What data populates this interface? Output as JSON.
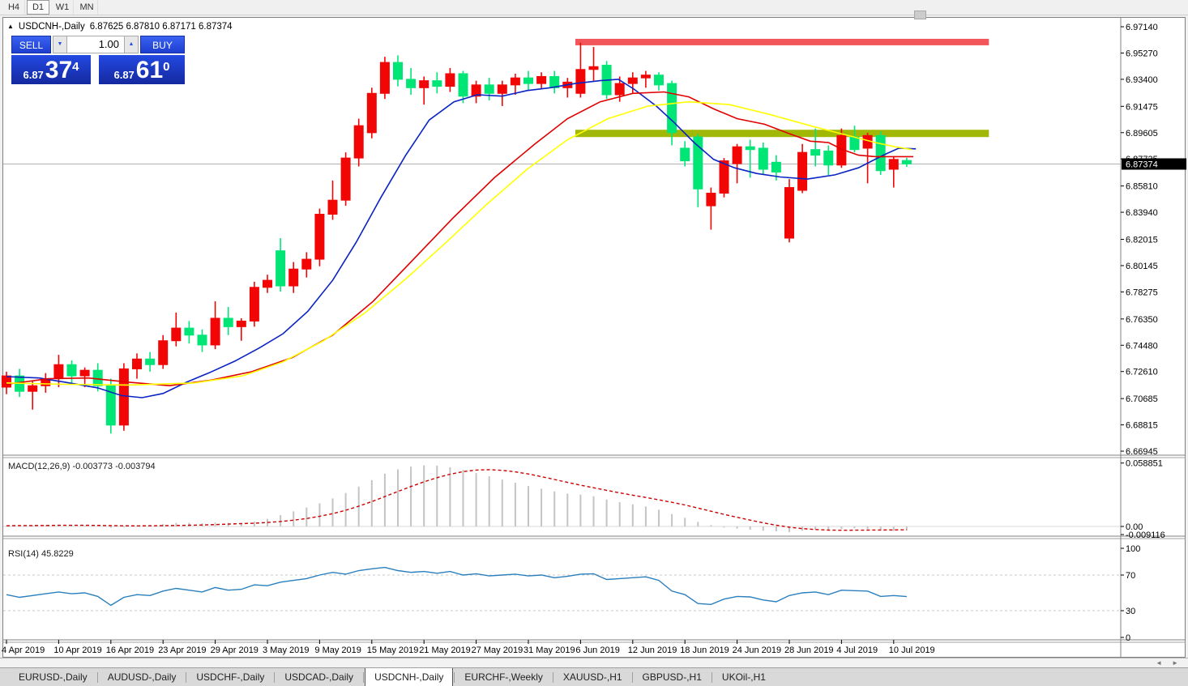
{
  "toolbar": {
    "timeframes": [
      "H4",
      "D1",
      "W1",
      "MN"
    ],
    "active_timeframe": "D1"
  },
  "window": {
    "collapse_icon": "▲",
    "symbol": "USDCNH-,Daily",
    "ohlc_text": "6.87625 6.87810 6.87171 6.87374"
  },
  "trade_panel": {
    "sell_label": "SELL",
    "buy_label": "BUY",
    "volume": "1.00",
    "spin_down_icon": "▼",
    "spin_up_icon": "▲",
    "sell_price": {
      "small": "6.87",
      "big": "37",
      "sup": "4"
    },
    "buy_price": {
      "small": "6.87",
      "big": "61",
      "sup": "0"
    }
  },
  "indicators": {
    "macd_label": "MACD(12,26,9) -0.003773 -0.003794",
    "rsi_label": "RSI(14) 45.8229"
  },
  "price_axis": {
    "labels": [
      "6.97140",
      "6.95270",
      "6.93400",
      "6.91475",
      "6.89605",
      "6.87735",
      "6.85810",
      "6.83940",
      "6.82015",
      "6.80145",
      "6.78275",
      "6.76350",
      "6.74480",
      "6.72610",
      "6.70685",
      "6.68815",
      "6.66945"
    ],
    "current_price": "6.87374"
  },
  "macd_axis": {
    "labels": [
      {
        "text": "0.058851",
        "value": 0.058851
      },
      {
        "text": "0.00",
        "value": 0.0
      },
      {
        "text": "-0.009116",
        "value": -0.009116
      }
    ]
  },
  "rsi_axis": {
    "labels": [
      {
        "text": "100",
        "value": 100
      },
      {
        "text": "70",
        "value": 70
      },
      {
        "text": "30",
        "value": 30
      },
      {
        "text": "0",
        "value": 0
      }
    ]
  },
  "tabs": {
    "items": [
      "EURUSD-,Daily",
      "AUDUSD-,Daily",
      "USDCHF-,Daily",
      "USDCAD-,Daily",
      "USDCNH-,Daily",
      "EURCHF-,Weekly",
      "XAUUSD-,H1",
      "GBPUSD-,H1",
      "UKOil-,H1"
    ],
    "active": "USDCNH-,Daily",
    "scroll_left_icon": "◄",
    "scroll_right_icon": "►"
  },
  "colors": {
    "bull": "#f20505",
    "bear": "#00e676",
    "ma_fast": "#0a23c4",
    "ma_mid": "#e00000",
    "ma_slow": "#ffff00",
    "macd_hist": "#c4c4c4",
    "macd_signal": "#cc0000",
    "rsi_line": "#2a7fbe",
    "rsi_guide": "#c8c8c8",
    "band_red": "#f2555a",
    "band_olive": "#a2b806",
    "bid_line": "#b3b3b3",
    "price_tag_bg": "#000000",
    "price_tag_fg": "#ffffff",
    "frame": "#808080",
    "axis_text": "#000000"
  },
  "chart_data": {
    "type": "candlestick",
    "symbol": "USDCNH",
    "timeframe": "Daily",
    "title": "USDCNH-,Daily",
    "y_axis_range": [
      6.66945,
      6.9714
    ],
    "color_convention": "red-up-green-down",
    "x_labels": [
      "4 Apr 2019",
      "10 Apr 2019",
      "16 Apr 2019",
      "23 Apr 2019",
      "29 Apr 2019",
      "3 May 2019",
      "9 May 2019",
      "15 May 2019",
      "21 May 2019",
      "27 May 2019",
      "31 May 2019",
      "6 Jun 2019",
      "12 Jun 2019",
      "18 Jun 2019",
      "24 Jun 2019",
      "28 Jun 2019",
      "4 Jul 2019",
      "10 Jul 2019"
    ],
    "x_label_every": 4,
    "candles": [
      [
        6.715,
        6.726,
        6.71,
        6.723
      ],
      [
        6.723,
        6.728,
        6.708,
        6.712
      ],
      [
        6.712,
        6.719,
        6.699,
        6.716
      ],
      [
        6.716,
        6.725,
        6.711,
        6.721
      ],
      [
        6.721,
        6.738,
        6.715,
        6.731
      ],
      [
        6.731,
        6.734,
        6.718,
        6.723
      ],
      [
        6.723,
        6.729,
        6.715,
        6.727
      ],
      [
        6.727,
        6.732,
        6.712,
        6.716
      ],
      [
        6.716,
        6.721,
        6.682,
        6.688
      ],
      [
        6.688,
        6.732,
        6.684,
        6.728
      ],
      [
        6.728,
        6.739,
        6.721,
        6.735
      ],
      [
        6.735,
        6.74,
        6.726,
        6.731
      ],
      [
        6.731,
        6.752,
        6.728,
        6.748
      ],
      [
        6.748,
        6.768,
        6.744,
        6.757
      ],
      [
        6.757,
        6.762,
        6.746,
        6.752
      ],
      [
        6.752,
        6.756,
        6.74,
        6.745
      ],
      [
        6.745,
        6.776,
        6.742,
        6.764
      ],
      [
        6.764,
        6.772,
        6.752,
        6.758
      ],
      [
        6.758,
        6.764,
        6.748,
        6.762
      ],
      [
        6.762,
        6.79,
        6.758,
        6.786
      ],
      [
        6.786,
        6.795,
        6.782,
        6.791
      ],
      [
        6.812,
        6.821,
        6.783,
        6.787
      ],
      [
        6.787,
        6.804,
        6.782,
        6.799
      ],
      [
        6.799,
        6.811,
        6.793,
        6.806
      ],
      [
        6.806,
        6.842,
        6.801,
        6.838
      ],
      [
        6.838,
        6.862,
        6.834,
        6.848
      ],
      [
        6.848,
        6.882,
        6.844,
        6.878
      ],
      [
        6.878,
        6.906,
        6.872,
        6.901
      ],
      [
        6.896,
        6.928,
        6.892,
        6.924
      ],
      [
        6.924,
        6.95,
        6.92,
        6.946
      ],
      [
        6.946,
        6.951,
        6.929,
        6.934
      ],
      [
        6.934,
        6.942,
        6.923,
        6.928
      ],
      [
        6.928,
        6.936,
        6.916,
        6.933
      ],
      [
        6.933,
        6.939,
        6.924,
        6.929
      ],
      [
        6.929,
        6.942,
        6.925,
        6.938
      ],
      [
        6.938,
        6.94,
        6.917,
        6.922
      ],
      [
        6.922,
        6.933,
        6.917,
        6.93
      ],
      [
        6.93,
        6.935,
        6.919,
        6.924
      ],
      [
        6.924,
        6.933,
        6.915,
        6.93
      ],
      [
        6.93,
        6.938,
        6.923,
        6.935
      ],
      [
        6.935,
        6.94,
        6.926,
        6.931
      ],
      [
        6.931,
        6.939,
        6.927,
        6.936
      ],
      [
        6.936,
        6.94,
        6.924,
        6.928
      ],
      [
        6.928,
        6.935,
        6.921,
        6.932
      ],
      [
        6.924,
        6.96,
        6.921,
        6.941
      ],
      [
        6.941,
        6.957,
        6.933,
        6.943
      ],
      [
        6.944,
        6.947,
        6.92,
        6.923
      ],
      [
        6.923,
        6.936,
        6.918,
        6.931
      ],
      [
        6.931,
        6.939,
        6.924,
        6.935
      ],
      [
        6.935,
        6.94,
        6.928,
        6.937
      ],
      [
        6.937,
        6.939,
        6.926,
        6.93
      ],
      [
        6.931,
        6.933,
        6.887,
        6.896
      ],
      [
        6.885,
        6.89,
        6.872,
        6.876
      ],
      [
        6.893,
        6.895,
        6.843,
        6.856
      ],
      [
        6.844,
        6.857,
        6.827,
        6.853
      ],
      [
        6.853,
        6.878,
        6.85,
        6.876
      ],
      [
        6.874,
        6.888,
        6.86,
        6.886
      ],
      [
        6.886,
        6.891,
        6.864,
        6.884
      ],
      [
        6.885,
        6.889,
        6.866,
        6.87
      ],
      [
        6.875,
        6.88,
        6.862,
        6.868
      ],
      [
        6.821,
        6.863,
        6.818,
        6.857
      ],
      [
        6.855,
        6.888,
        6.853,
        6.882
      ],
      [
        6.884,
        6.899,
        6.872,
        6.88
      ],
      [
        6.883,
        6.887,
        6.866,
        6.873
      ],
      [
        6.873,
        6.899,
        6.871,
        6.894
      ],
      [
        6.893,
        6.901,
        6.882,
        6.884
      ],
      [
        6.885,
        6.896,
        6.86,
        6.894
      ],
      [
        6.894,
        6.897,
        6.866,
        6.869
      ],
      [
        6.87,
        6.879,
        6.857,
        6.877
      ],
      [
        6.87625,
        6.8781,
        6.87171,
        6.87374
      ]
    ],
    "overlays": {
      "ma_fast": [
        [
          0,
          6.7225
        ],
        [
          2.5,
          6.7215
        ],
        [
          4.5,
          6.7185
        ],
        [
          7,
          6.7145
        ],
        [
          8.8,
          6.709
        ],
        [
          10.4,
          6.7075
        ],
        [
          12,
          6.7105
        ],
        [
          13.8,
          6.7185
        ],
        [
          15.6,
          6.7255
        ],
        [
          17.5,
          6.7335
        ],
        [
          19.4,
          6.743
        ],
        [
          21.2,
          6.753
        ],
        [
          23.1,
          6.769
        ],
        [
          25,
          6.791
        ],
        [
          26.8,
          6.818
        ],
        [
          28.7,
          6.85
        ],
        [
          30.6,
          6.88
        ],
        [
          32.4,
          6.905
        ],
        [
          34.3,
          6.918
        ],
        [
          36.1,
          6.923
        ],
        [
          38,
          6.922
        ],
        [
          39.9,
          6.926
        ],
        [
          41.7,
          6.928
        ],
        [
          43.6,
          6.931
        ],
        [
          45.5,
          6.933
        ],
        [
          46.9,
          6.934
        ],
        [
          48.1,
          6.927
        ],
        [
          49.8,
          6.915
        ],
        [
          51.2,
          6.903
        ],
        [
          52.7,
          6.889
        ],
        [
          54.2,
          6.877
        ],
        [
          55.8,
          6.871
        ],
        [
          57.5,
          6.867
        ],
        [
          59.3,
          6.8645
        ],
        [
          61.4,
          6.863
        ],
        [
          63.5,
          6.866
        ],
        [
          65.3,
          6.871
        ],
        [
          67.2,
          6.88
        ],
        [
          68.4,
          6.885
        ],
        [
          69.7,
          6.8845
        ]
      ],
      "ma_mid": [
        [
          0,
          6.717
        ],
        [
          3.2,
          6.721
        ],
        [
          6.3,
          6.7215
        ],
        [
          9.4,
          6.7185
        ],
        [
          12.5,
          6.716
        ],
        [
          15.7,
          6.72
        ],
        [
          18.8,
          6.726
        ],
        [
          21.9,
          6.736
        ],
        [
          25,
          6.752
        ],
        [
          28.1,
          6.776
        ],
        [
          31.2,
          6.806
        ],
        [
          34.3,
          6.836
        ],
        [
          37.4,
          6.864
        ],
        [
          40.5,
          6.888
        ],
        [
          43,
          6.906
        ],
        [
          45.5,
          6.918
        ],
        [
          48,
          6.924
        ],
        [
          50.4,
          6.925
        ],
        [
          52.3,
          6.9215
        ],
        [
          54.2,
          6.913
        ],
        [
          56,
          6.906
        ],
        [
          58.1,
          6.902
        ],
        [
          60.1,
          6.895
        ],
        [
          61.6,
          6.89
        ],
        [
          63,
          6.889
        ],
        [
          64.1,
          6.884
        ],
        [
          65.3,
          6.88
        ],
        [
          66.6,
          6.879
        ],
        [
          67.8,
          6.879
        ],
        [
          69.5,
          6.879
        ]
      ],
      "ma_slow": [
        [
          0,
          6.718
        ],
        [
          4.5,
          6.717
        ],
        [
          9.4,
          6.7165
        ],
        [
          14.4,
          6.718
        ],
        [
          18.1,
          6.723
        ],
        [
          21.2,
          6.733
        ],
        [
          24.3,
          6.748
        ],
        [
          27.5,
          6.768
        ],
        [
          30.6,
          6.792
        ],
        [
          33.7,
          6.818
        ],
        [
          36.8,
          6.845
        ],
        [
          39.9,
          6.87
        ],
        [
          43,
          6.891
        ],
        [
          46.1,
          6.906
        ],
        [
          49.2,
          6.915
        ],
        [
          52.3,
          6.918
        ],
        [
          55.4,
          6.916
        ],
        [
          58.5,
          6.909
        ],
        [
          61.6,
          6.901
        ],
        [
          64.1,
          6.895
        ],
        [
          66.6,
          6.889
        ],
        [
          68.1,
          6.886
        ],
        [
          69.4,
          6.884
        ]
      ],
      "resistance_band": {
        "price": 6.9605,
        "from": 43.6,
        "to": 75.3,
        "thickness_price": 0.0046
      },
      "support_band": {
        "price": 6.8955,
        "from": 43.6,
        "to": 75.3,
        "thickness_price": 0.0052
      },
      "bid_line": 6.87374
    },
    "macd": {
      "params": "12,26,9",
      "signal_period": 9,
      "current": -0.003773,
      "current_signal": -0.003794,
      "scale_max": 0.058851,
      "scale_min": -0.009116,
      "values": [
        0.0006,
        0.001,
        0.0008,
        0.0012,
        0.0016,
        0.0012,
        0.0009,
        0.0004,
        -0.0012,
        -0.0008,
        0.0008,
        0.0014,
        0.0022,
        0.0032,
        0.0034,
        0.0028,
        0.0036,
        0.0032,
        0.003,
        0.0045,
        0.007,
        0.0105,
        0.014,
        0.0175,
        0.0215,
        0.026,
        0.031,
        0.037,
        0.043,
        0.049,
        0.053,
        0.0555,
        0.0567,
        0.0565,
        0.055,
        0.0525,
        0.0495,
        0.0465,
        0.0435,
        0.0405,
        0.0375,
        0.035,
        0.0325,
        0.0305,
        0.0295,
        0.028,
        0.025,
        0.0225,
        0.0205,
        0.0185,
        0.0155,
        0.0115,
        0.008,
        0.0042,
        0.0012,
        -0.001,
        -0.002,
        -0.003,
        -0.004,
        -0.0046,
        -0.0052,
        -0.004,
        -0.003,
        -0.0036,
        -0.0022,
        -0.0016,
        -0.0022,
        -0.0032,
        -0.0042,
        -0.0038
      ]
    },
    "rsi": {
      "period": 14,
      "current": 45.8229,
      "levels": [
        70,
        30
      ],
      "values": [
        48,
        45,
        47,
        49,
        51,
        49,
        50,
        46,
        36,
        45,
        48,
        47,
        52,
        55,
        53,
        51,
        56,
        53,
        54,
        59,
        58,
        62,
        64,
        66,
        70,
        73,
        71,
        75,
        77,
        78.5,
        75,
        73,
        74,
        72,
        74,
        70,
        71.5,
        69,
        70,
        71,
        69,
        70,
        67,
        68.5,
        71,
        71.5,
        65,
        66,
        67,
        68,
        64,
        52,
        48,
        38,
        37,
        43,
        46,
        45.5,
        42,
        40,
        47,
        50,
        51,
        48,
        53,
        52.5,
        52,
        46,
        47,
        45.8
      ]
    }
  }
}
